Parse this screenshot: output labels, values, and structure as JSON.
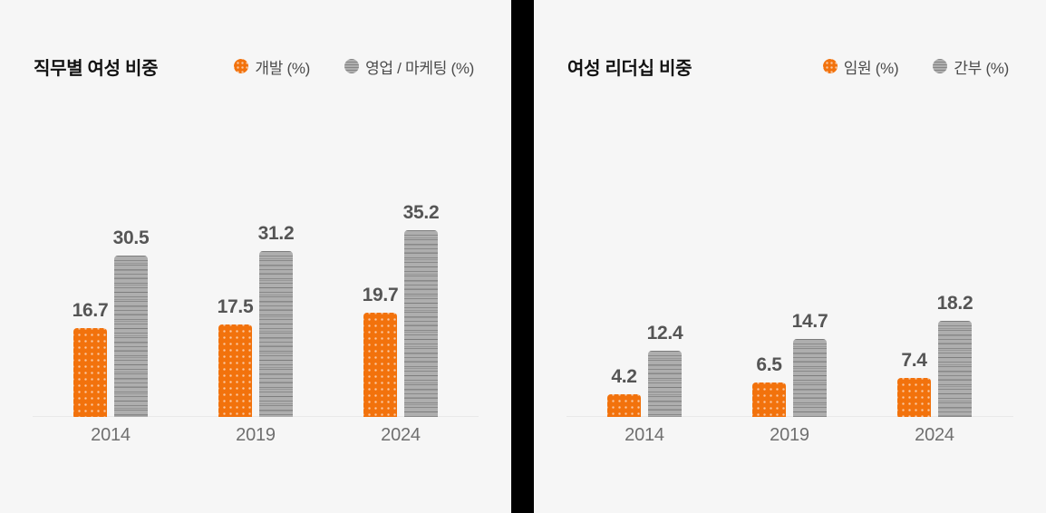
{
  "page": {
    "background": "#f6f6f6",
    "divider_color": "#000000",
    "accent_orange": "#f2720c",
    "accent_gray": "#aeaeae"
  },
  "chart_data": [
    {
      "type": "bar",
      "title": "직무별 여성 비중",
      "categories": [
        "2014",
        "2019",
        "2024"
      ],
      "series": [
        {
          "name": "개발 (%)",
          "color": "#f2720c",
          "pattern": "dots",
          "values": [
            16.7,
            17.5,
            19.7
          ]
        },
        {
          "name": "영업 / 마케팅 (%)",
          "color": "#aeaeae",
          "pattern": "hlines",
          "values": [
            30.5,
            31.2,
            35.2
          ]
        }
      ],
      "xlabel": "",
      "ylabel": "",
      "ylim": [
        0,
        40
      ],
      "grid": false,
      "axis_hidden": true,
      "value_labels": true,
      "legend_position": "top-right"
    },
    {
      "type": "bar",
      "title": "여성 리더십 비중",
      "categories": [
        "2014",
        "2019",
        "2024"
      ],
      "series": [
        {
          "name": "임원 (%)",
          "color": "#f2720c",
          "pattern": "dots",
          "values": [
            4.2,
            6.5,
            7.4
          ]
        },
        {
          "name": "간부 (%)",
          "color": "#aeaeae",
          "pattern": "hlines",
          "values": [
            12.4,
            14.7,
            18.2
          ]
        }
      ],
      "xlabel": "",
      "ylabel": "",
      "ylim": [
        0,
        40
      ],
      "grid": false,
      "axis_hidden": true,
      "value_labels": true,
      "legend_position": "top-right"
    }
  ]
}
